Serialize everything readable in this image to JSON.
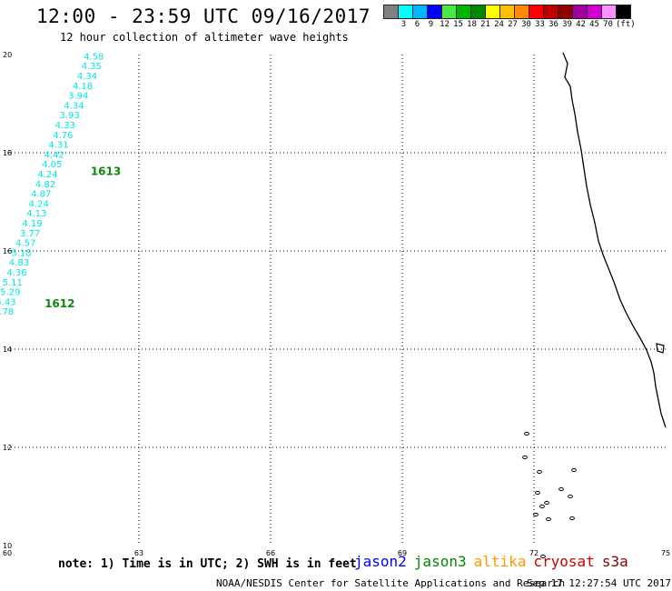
{
  "header": {
    "title": "12:00 - 23:59 UTC 09/16/2017",
    "subtitle": "12 hour collection of altimeter wave heights"
  },
  "legend": {
    "colors": [
      "#808080",
      "#00ffff",
      "#00b4ff",
      "#0000ff",
      "#48e848",
      "#00b400",
      "#008800",
      "#ffff00",
      "#ffbe00",
      "#ff8c00",
      "#ff0000",
      "#c00000",
      "#900000",
      "#a000a0",
      "#d000d0",
      "#ff90ff",
      "#000000"
    ],
    "labels": [
      "",
      "3",
      "6",
      "9",
      "12",
      "15",
      "18",
      "21",
      "24",
      "27",
      "30",
      "33",
      "36",
      "39",
      "42",
      "45",
      "70"
    ],
    "unit": "(ft)"
  },
  "axes": {
    "lon_ticks": [
      "60",
      "63",
      "66",
      "69",
      "72",
      "75"
    ],
    "lat_ticks": [
      "20",
      "18",
      "16",
      "14",
      "12",
      "10"
    ],
    "lon_range": [
      60,
      75
    ],
    "lat_range": [
      10,
      20
    ]
  },
  "passes": [
    {
      "label": "1613",
      "color": "#0a8a0a",
      "lon": 61.9,
      "lat": 17.55
    },
    {
      "label": "1612",
      "color": "#0a8a0a",
      "lon": 60.85,
      "lat": 14.85
    }
  ],
  "wave_heights": [
    {
      "value": "4.58",
      "lon": 62.2,
      "lat": 19.9
    },
    {
      "value": "4.35",
      "lon": 62.15,
      "lat": 19.7
    },
    {
      "value": "4.34",
      "lon": 62.05,
      "lat": 19.5
    },
    {
      "value": "4.18",
      "lon": 61.95,
      "lat": 19.3
    },
    {
      "value": "3.94",
      "lon": 61.85,
      "lat": 19.1
    },
    {
      "value": "4.34",
      "lon": 61.75,
      "lat": 18.9
    },
    {
      "value": "3.93",
      "lon": 61.65,
      "lat": 18.7
    },
    {
      "value": "4.33",
      "lon": 61.55,
      "lat": 18.5
    },
    {
      "value": "4.76",
      "lon": 61.5,
      "lat": 18.3
    },
    {
      "value": "4.31",
      "lon": 61.4,
      "lat": 18.1
    },
    {
      "value": "4.42",
      "lon": 61.3,
      "lat": 17.9
    },
    {
      "value": "4.05",
      "lon": 61.25,
      "lat": 17.7
    },
    {
      "value": "4.24",
      "lon": 61.15,
      "lat": 17.5
    },
    {
      "value": "4.82",
      "lon": 61.1,
      "lat": 17.3
    },
    {
      "value": "4.87",
      "lon": 61.0,
      "lat": 17.1
    },
    {
      "value": "4.24",
      "lon": 60.95,
      "lat": 16.9
    },
    {
      "value": "4.13",
      "lon": 60.9,
      "lat": 16.7
    },
    {
      "value": "4.19",
      "lon": 60.8,
      "lat": 16.5
    },
    {
      "value": "3.77",
      "lon": 60.75,
      "lat": 16.3
    },
    {
      "value": "4.57",
      "lon": 60.65,
      "lat": 16.1
    },
    {
      "value": "5.18",
      "lon": 60.55,
      "lat": 15.9
    },
    {
      "value": "4.83",
      "lon": 60.5,
      "lat": 15.7
    },
    {
      "value": "4.36",
      "lon": 60.45,
      "lat": 15.5
    },
    {
      "value": "5.11",
      "lon": 60.35,
      "lat": 15.3
    },
    {
      "value": "5.29",
      "lon": 60.3,
      "lat": 15.1
    },
    {
      "value": "5.43",
      "lon": 60.2,
      "lat": 14.9
    },
    {
      "value": "4.78",
      "lon": 60.15,
      "lat": 14.7
    }
  ],
  "footer": {
    "note": "note: 1) Time is in UTC; 2) SWH is in feet",
    "satellites": [
      {
        "name": "jason2",
        "color": "#0000ff"
      },
      {
        "name": "jason3",
        "color": "#008800"
      },
      {
        "name": "altika",
        "color": "#ff9900"
      },
      {
        "name": "cryosat",
        "color": "#cc0000"
      },
      {
        "name": "s3a",
        "color": "#880000"
      }
    ],
    "credit": "NOAA/NESDIS Center for Satellite Applications and Research",
    "timestamp": "Sep 17 12:27:54 UTC 2017"
  }
}
